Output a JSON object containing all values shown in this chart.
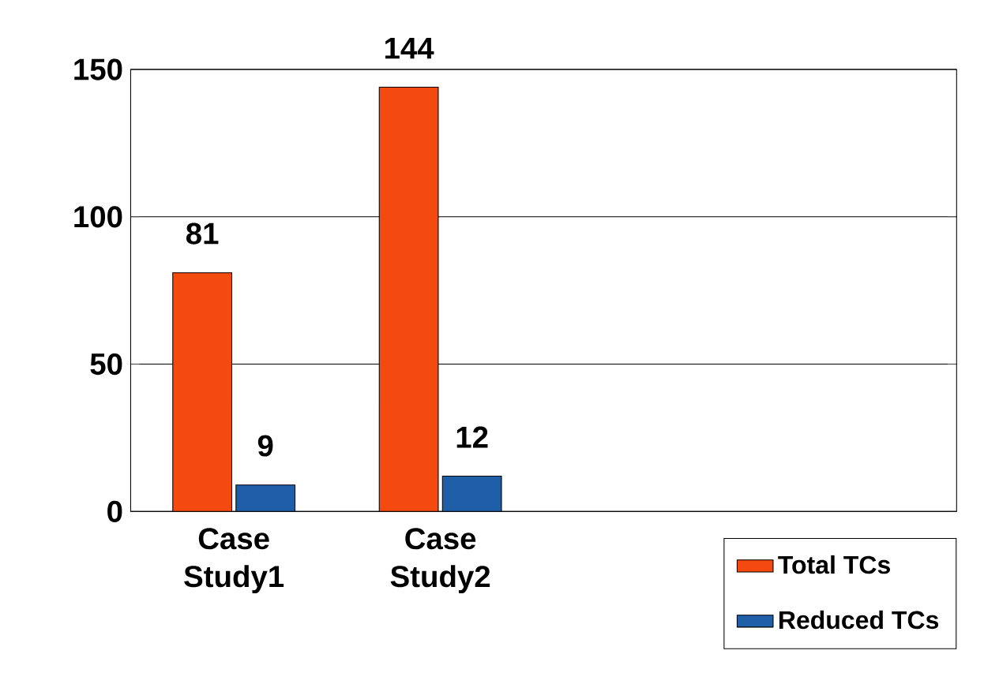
{
  "chart_data": {
    "type": "bar",
    "categories": [
      "Case Study1",
      "Case Study2"
    ],
    "series": [
      {
        "name": "Total TCs",
        "color": "#f54a0f",
        "values": [
          81,
          144
        ]
      },
      {
        "name": "Reduced TCs",
        "color": "#1f5fa8",
        "values": [
          9,
          12
        ]
      }
    ],
    "ylim": [
      0,
      150
    ],
    "yticks": [
      0,
      50,
      100,
      150
    ],
    "grid": "y",
    "data_labels": true,
    "legend": "bottom right"
  }
}
